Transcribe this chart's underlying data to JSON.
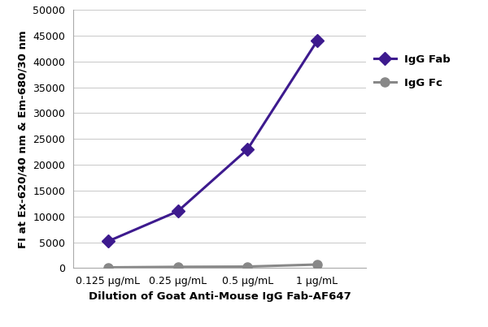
{
  "x_labels": [
    "0.125 μg/mL",
    "0.25 μg/mL",
    "0.5 μg/mL",
    "1 μg/mL"
  ],
  "x_positions": [
    1,
    2,
    3,
    4
  ],
  "igg_fab_values": [
    5200,
    11000,
    23000,
    44000
  ],
  "igg_fc_values": [
    150,
    250,
    300,
    700
  ],
  "fab_color": "#3d1a8e",
  "fc_color": "#888888",
  "fab_label": "IgG Fab",
  "fc_label": "IgG Fc",
  "ylabel": "FI at Ex-620/40 nm & Em-680/30 nm",
  "xlabel": "Dilution of Goat Anti-Mouse IgG Fab-AF647",
  "ylim": [
    0,
    50000
  ],
  "yticks": [
    0,
    5000,
    10000,
    15000,
    20000,
    25000,
    30000,
    35000,
    40000,
    45000,
    50000
  ],
  "ytick_labels": [
    "0",
    "5000",
    "10000",
    "15000",
    "20000",
    "25000",
    "30000",
    "35000",
    "40000",
    "45000",
    "50000"
  ],
  "axis_label_fontsize": 9.5,
  "tick_fontsize": 9,
  "legend_fontsize": 9.5,
  "line_width": 2.2,
  "marker_size": 8,
  "bg_color": "#ffffff",
  "plot_bg_color": "#ffffff",
  "grid_color": "#cccccc",
  "spine_color": "#aaaaaa"
}
